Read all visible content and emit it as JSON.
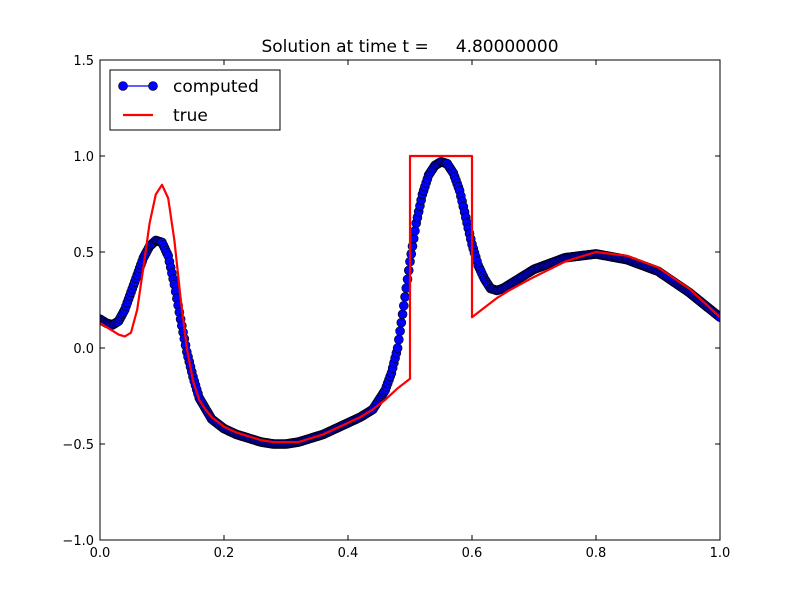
{
  "chart_data": {
    "type": "line",
    "title": "Solution at time t =     4.80000000",
    "xlabel": "",
    "ylabel": "",
    "xlim": [
      0.0,
      1.0
    ],
    "ylim": [
      -1.0,
      1.5
    ],
    "x_ticks": [
      "0.0",
      "0.2",
      "0.4",
      "0.6",
      "0.8",
      "1.0"
    ],
    "y_ticks": [
      "−1.0",
      "−0.5",
      "0.0",
      "0.5",
      "1.0",
      "1.5"
    ],
    "grid": false,
    "legend": {
      "placement": "top-left",
      "entries": [
        "computed",
        "true"
      ]
    },
    "series": [
      {
        "name": "computed",
        "color": "#0000ff",
        "marker": "circle",
        "x": [
          0.0,
          0.01,
          0.02,
          0.03,
          0.04,
          0.05,
          0.06,
          0.07,
          0.08,
          0.09,
          0.1,
          0.11,
          0.12,
          0.13,
          0.14,
          0.15,
          0.16,
          0.18,
          0.2,
          0.22,
          0.24,
          0.26,
          0.28,
          0.3,
          0.32,
          0.34,
          0.36,
          0.38,
          0.4,
          0.42,
          0.44,
          0.46,
          0.47,
          0.48,
          0.49,
          0.5,
          0.51,
          0.52,
          0.53,
          0.54,
          0.55,
          0.56,
          0.57,
          0.58,
          0.59,
          0.6,
          0.61,
          0.62,
          0.63,
          0.64,
          0.65,
          0.67,
          0.7,
          0.75,
          0.8,
          0.85,
          0.9,
          0.95,
          1.0
        ],
        "y": [
          0.15,
          0.13,
          0.12,
          0.14,
          0.2,
          0.29,
          0.38,
          0.47,
          0.53,
          0.56,
          0.55,
          0.48,
          0.33,
          0.15,
          -0.02,
          -0.15,
          -0.26,
          -0.37,
          -0.42,
          -0.45,
          -0.47,
          -0.49,
          -0.5,
          -0.5,
          -0.49,
          -0.47,
          -0.45,
          -0.42,
          -0.39,
          -0.36,
          -0.32,
          -0.22,
          -0.13,
          0.0,
          0.22,
          0.45,
          0.65,
          0.8,
          0.9,
          0.95,
          0.97,
          0.96,
          0.91,
          0.82,
          0.68,
          0.54,
          0.43,
          0.36,
          0.31,
          0.3,
          0.31,
          0.35,
          0.41,
          0.47,
          0.49,
          0.46,
          0.4,
          0.29,
          0.16
        ]
      },
      {
        "name": "true",
        "color": "#ff0000",
        "marker": "none",
        "x": [
          0.0,
          0.01,
          0.02,
          0.03,
          0.04,
          0.05,
          0.06,
          0.07,
          0.08,
          0.09,
          0.1,
          0.11,
          0.12,
          0.13,
          0.14,
          0.15,
          0.16,
          0.17,
          0.18,
          0.2,
          0.22,
          0.24,
          0.26,
          0.28,
          0.3,
          0.32,
          0.34,
          0.36,
          0.38,
          0.4,
          0.42,
          0.44,
          0.46,
          0.48,
          0.5,
          0.5,
          0.6,
          0.6,
          0.62,
          0.64,
          0.66,
          0.7,
          0.75,
          0.8,
          0.85,
          0.9,
          0.95,
          1.0
        ],
        "y": [
          0.13,
          0.11,
          0.09,
          0.07,
          0.06,
          0.08,
          0.2,
          0.42,
          0.65,
          0.8,
          0.85,
          0.78,
          0.56,
          0.26,
          0.0,
          -0.17,
          -0.27,
          -0.32,
          -0.36,
          -0.41,
          -0.44,
          -0.46,
          -0.48,
          -0.49,
          -0.49,
          -0.49,
          -0.47,
          -0.45,
          -0.42,
          -0.39,
          -0.36,
          -0.32,
          -0.27,
          -0.21,
          -0.16,
          1.0,
          1.0,
          0.16,
          0.21,
          0.26,
          0.3,
          0.37,
          0.45,
          0.5,
          0.48,
          0.42,
          0.31,
          0.16
        ]
      }
    ]
  }
}
